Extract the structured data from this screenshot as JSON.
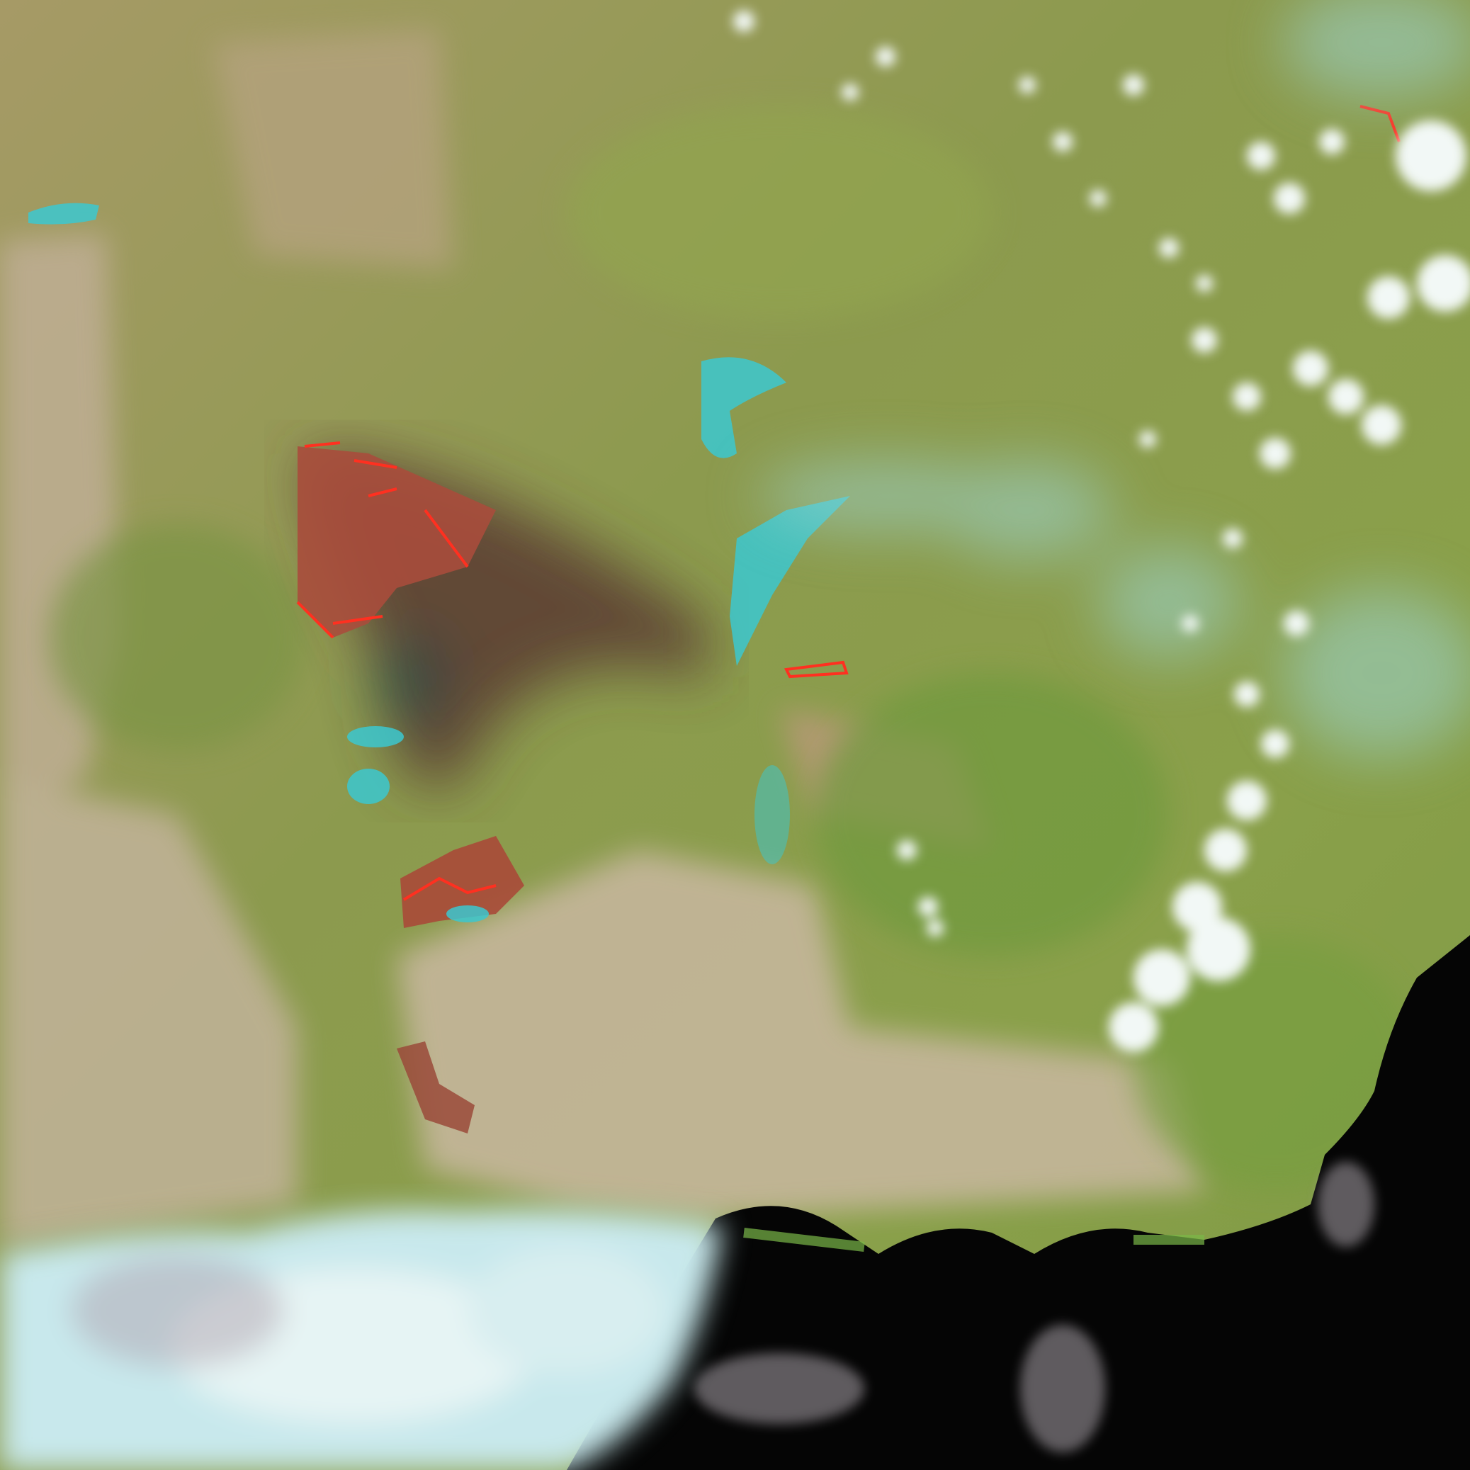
{
  "image": {
    "kind": "false-color satellite image",
    "colors": {
      "land_green": "#8a9a4a",
      "land_tan": "#b8a98c",
      "farmland": "#c4b49c",
      "water": "#3cc8d0",
      "ocean": "#050505",
      "cloud": "#e8f4f4",
      "cloud_bank": "#b8e4e8",
      "smoke": "#5a3a30",
      "burn_scar": "#a84a38",
      "active_fire": "#ff3020"
    }
  }
}
